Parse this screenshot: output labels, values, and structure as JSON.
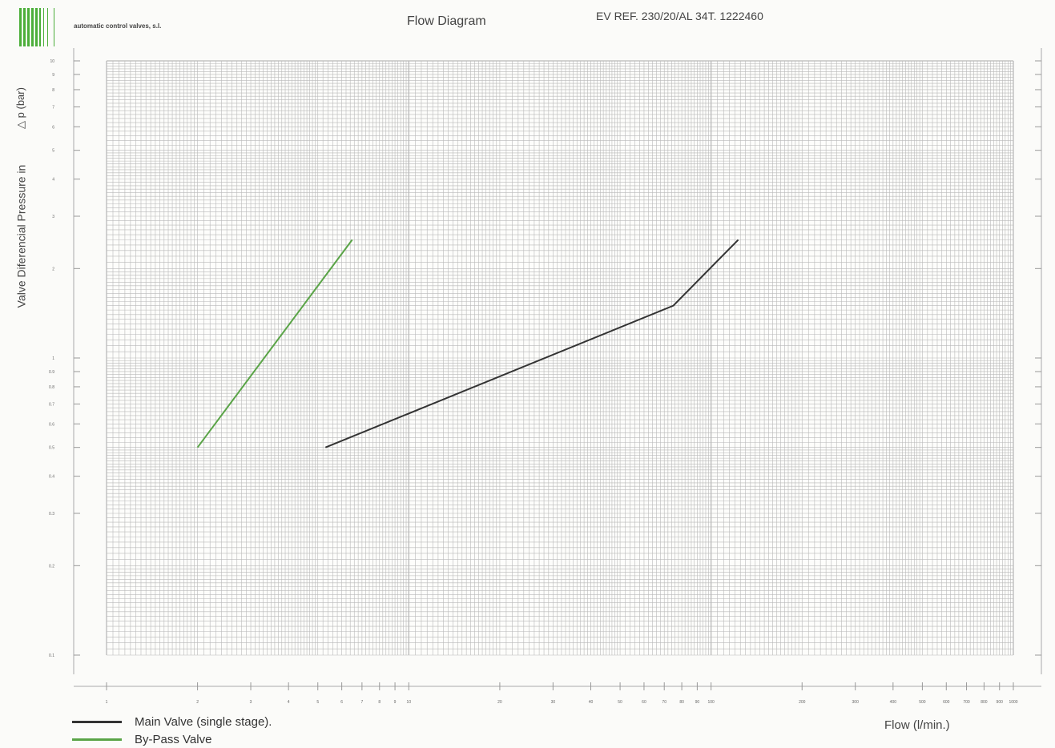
{
  "header": {
    "company": "automatic control valves, s.l.",
    "title": "Flow Diagram",
    "reference": "EV REF. 230/20/AL 34T. 1222460"
  },
  "colors": {
    "main": "#333333",
    "bypass": "#5aa447",
    "grid": "#b9b9b9",
    "logo": "#4cae3a"
  },
  "chart_data": {
    "type": "line",
    "title": "Flow Diagram",
    "xlabel": "Flow (l/min.)",
    "ylabel": "Valve Diferencial Pressure in",
    "yunit": "△ p (bar)",
    "xscale": "log",
    "yscale": "log",
    "xlim": [
      1,
      1000
    ],
    "ylim": [
      0.1,
      10
    ],
    "grid": true,
    "legend_position": "bottom-left",
    "x_ticks": [
      1,
      2,
      3,
      4,
      5,
      6,
      7,
      8,
      9,
      10,
      20,
      30,
      40,
      50,
      60,
      70,
      80,
      90,
      100,
      200,
      300,
      400,
      500,
      600,
      700,
      800,
      900,
      1000
    ],
    "y_ticks": [
      0.1,
      0.2,
      0.3,
      0.4,
      0.5,
      0.6,
      0.7,
      0.8,
      0.9,
      1,
      2,
      3,
      4,
      5,
      6,
      7,
      8,
      9,
      10
    ],
    "series": [
      {
        "name": "Main Valve (single stage).",
        "color": "#333333",
        "points": [
          [
            5.3,
            0.5
          ],
          [
            75,
            1.5
          ],
          [
            123,
            2.5
          ]
        ]
      },
      {
        "name": "By-Pass Valve",
        "color": "#5aa447",
        "points": [
          [
            2,
            0.5
          ],
          [
            6.5,
            2.5
          ]
        ]
      }
    ]
  }
}
